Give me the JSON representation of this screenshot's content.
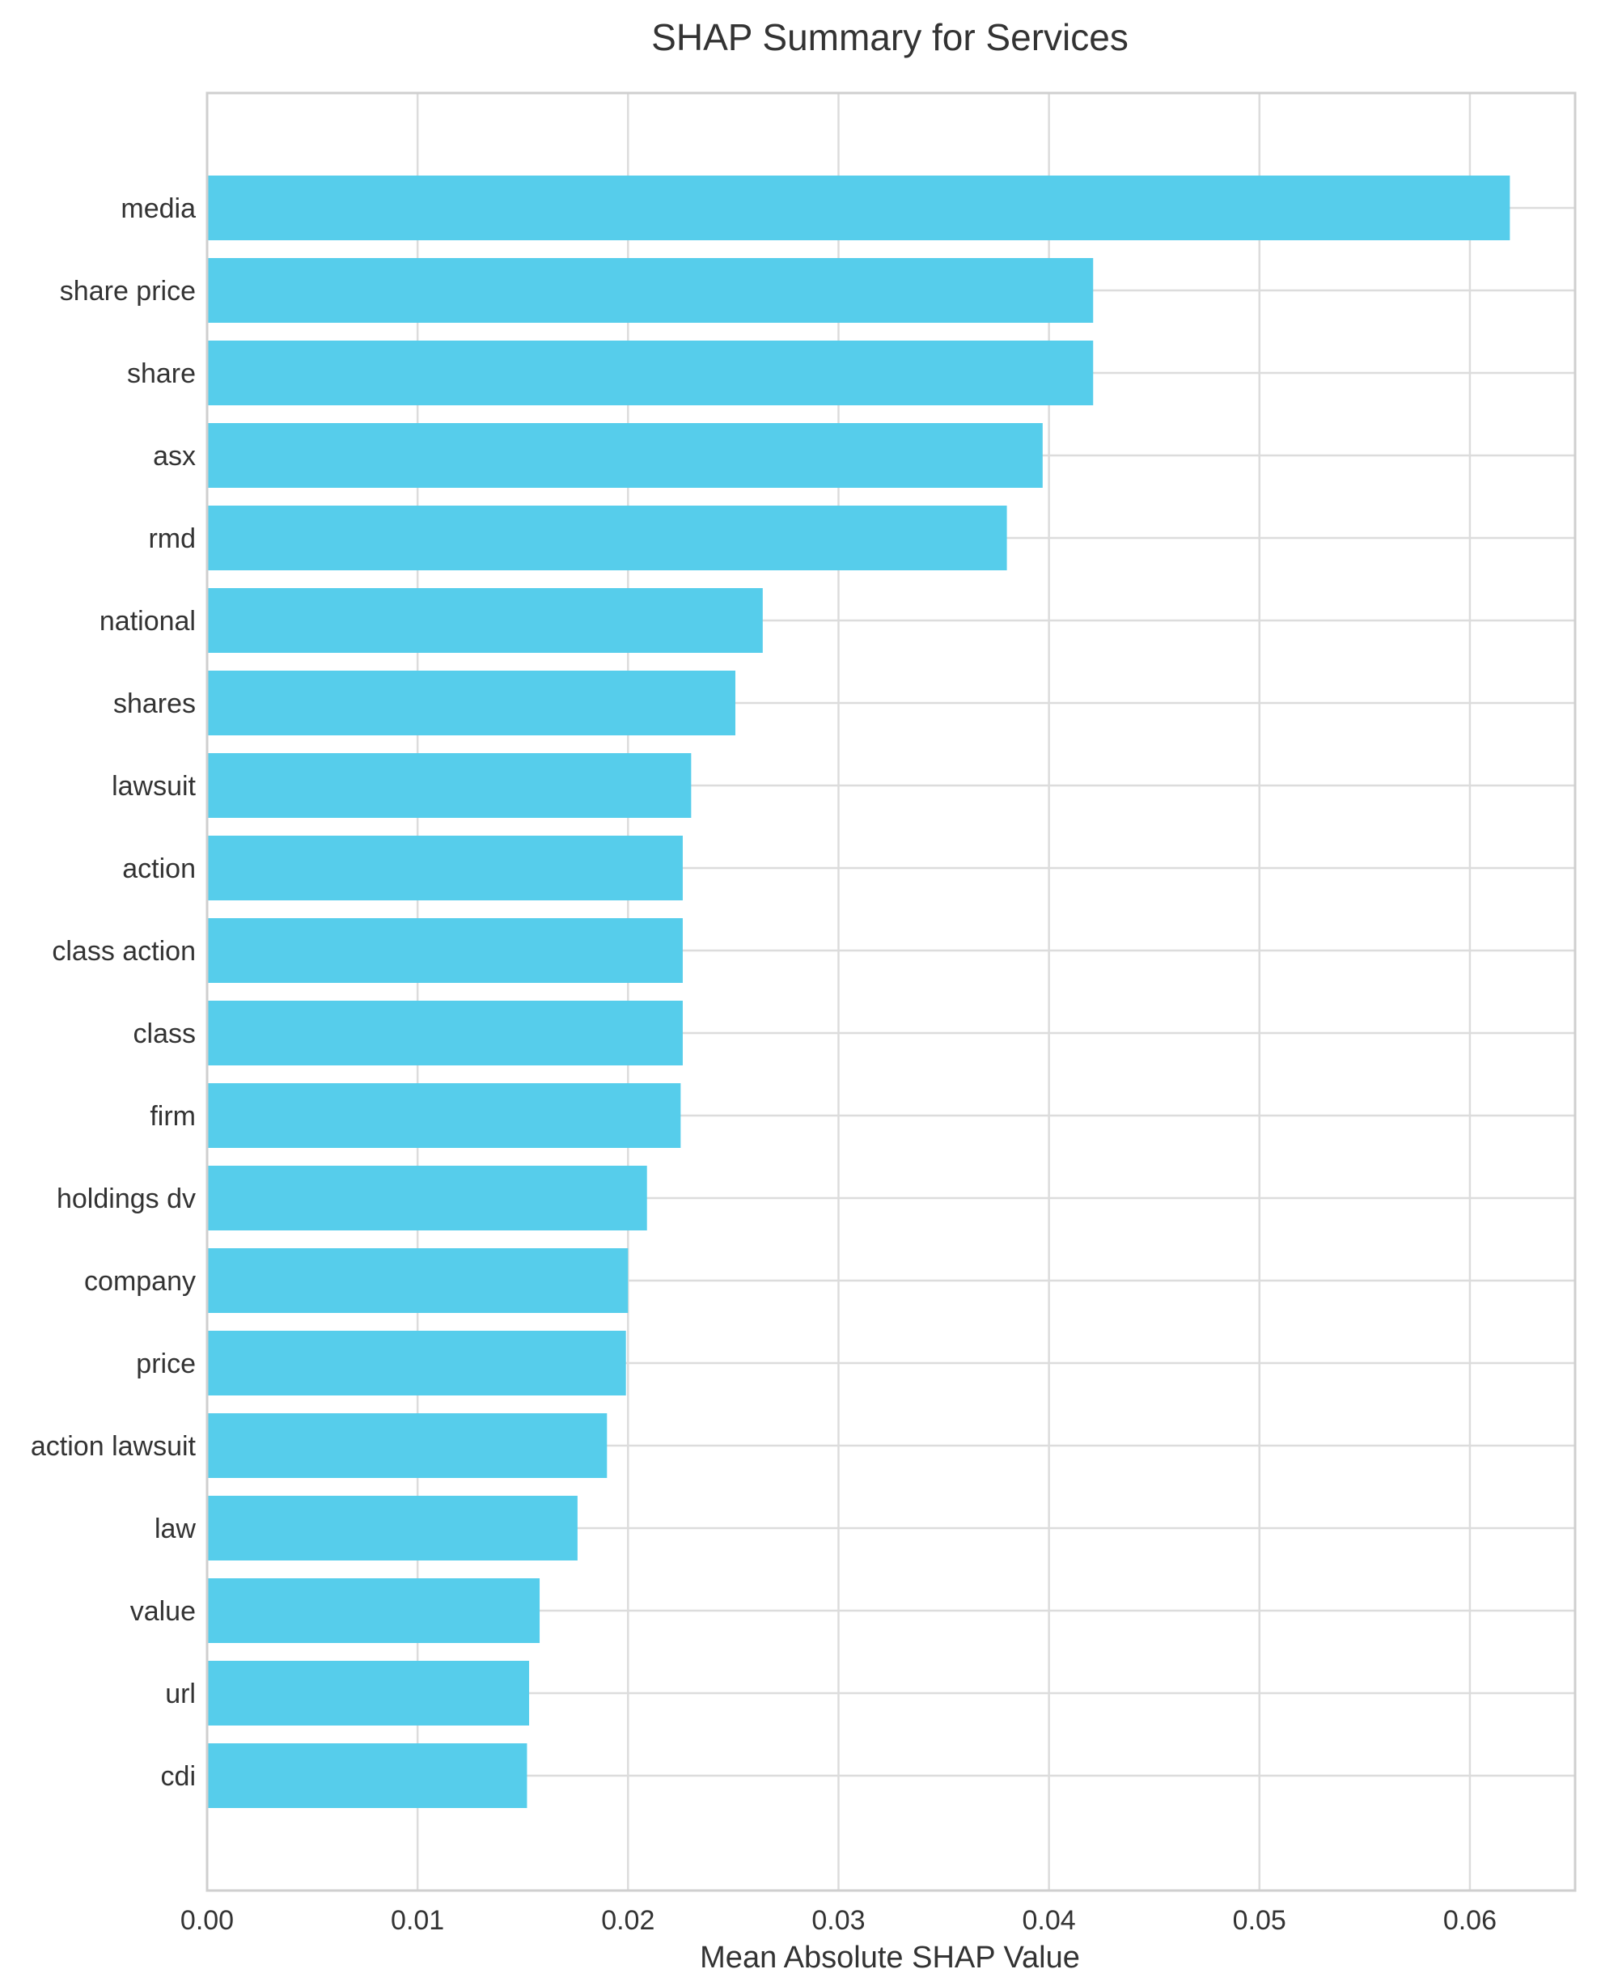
{
  "chart_data": {
    "type": "bar",
    "orientation": "horizontal",
    "title": "SHAP Summary for Services",
    "xlabel": "Mean Absolute SHAP Value",
    "ylabel": "",
    "xlim": [
      0,
      0.065
    ],
    "xticks": [
      "0.00",
      "0.01",
      "0.02",
      "0.03",
      "0.04",
      "0.05",
      "0.06"
    ],
    "grid": true,
    "bar_color": "#56CDEB",
    "categories": [
      "media",
      "share price",
      "share",
      "asx",
      "rmd",
      "national",
      "shares",
      "lawsuit",
      "action",
      "class action",
      "class",
      "firm",
      "holdings dv",
      "company",
      "price",
      "action lawsuit",
      "law",
      "value",
      "url",
      "cdi"
    ],
    "values": [
      0.0619,
      0.0421,
      0.0421,
      0.0397,
      0.038,
      0.0264,
      0.0251,
      0.023,
      0.0226,
      0.0226,
      0.0226,
      0.0225,
      0.0209,
      0.02,
      0.0199,
      0.019,
      0.0176,
      0.0158,
      0.0153,
      0.0152
    ]
  }
}
